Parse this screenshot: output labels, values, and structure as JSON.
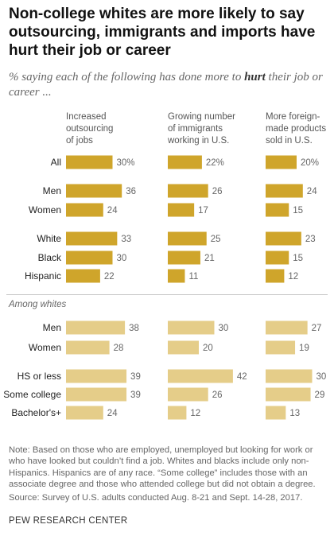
{
  "title": "Non-college whites are more likely to say outsourcing, immigrants and imports have hurt their job or career",
  "subtitle_pre": "% saying each of the following has done more to ",
  "subtitle_em": "hurt",
  "subtitle_post": " their job or career ...",
  "note": "Note: Based on those who are employed, unemployed but looking for work or who have looked but couldn’t find a job. Whites and blacks include only non-Hispanics. Hispanics are of any race. “Some college” includes those with an associate degree and those who attended college but did not obtain a degree.",
  "source": "Source: Survey of U.S. adults conducted Aug. 8-21 and Sept. 14-28, 2017.",
  "credit": "PEW RESEARCH CENTER",
  "chart_data": {
    "type": "bar",
    "orientation": "horizontal",
    "unit": "%",
    "colors": {
      "all_adults": "#CFA52B",
      "among_whites": "#E5CD89"
    },
    "series": [
      {
        "name": "Increased outsourcing of jobs",
        "label_lines": [
          "Increased",
          "outsourcing",
          "of jobs"
        ]
      },
      {
        "name": "Growing number of immigrants working in U.S.",
        "label_lines": [
          "Growing number",
          "of immigrants",
          "working in U.S."
        ]
      },
      {
        "name": "More foreign-made products sold in U.S.",
        "label_lines": [
          "More foreign-",
          "made products",
          "sold in U.S."
        ]
      }
    ],
    "groups": [
      {
        "label": "",
        "shade": "all_adults",
        "rows": [
          {
            "category": "All",
            "values": [
              30,
              22,
              20
            ],
            "suffix": "%"
          },
          {
            "category": "Men",
            "values": [
              36,
              26,
              24
            ]
          },
          {
            "category": "Women",
            "values": [
              24,
              17,
              15
            ]
          },
          {
            "category": "White",
            "values": [
              33,
              25,
              23
            ]
          },
          {
            "category": "Black",
            "values": [
              30,
              21,
              15
            ]
          },
          {
            "category": "Hispanic",
            "values": [
              22,
              11,
              12
            ]
          }
        ]
      },
      {
        "label": "Among whites",
        "shade": "among_whites",
        "rows": [
          {
            "category": "Men",
            "values": [
              38,
              30,
              27
            ]
          },
          {
            "category": "Women",
            "values": [
              28,
              20,
              19
            ]
          },
          {
            "category": "HS or less",
            "values": [
              39,
              42,
              30
            ]
          },
          {
            "category": "Some college",
            "values": [
              39,
              26,
              29
            ]
          },
          {
            "category": "Bachelor's+",
            "values": [
              24,
              12,
              13
            ]
          }
        ]
      }
    ]
  }
}
